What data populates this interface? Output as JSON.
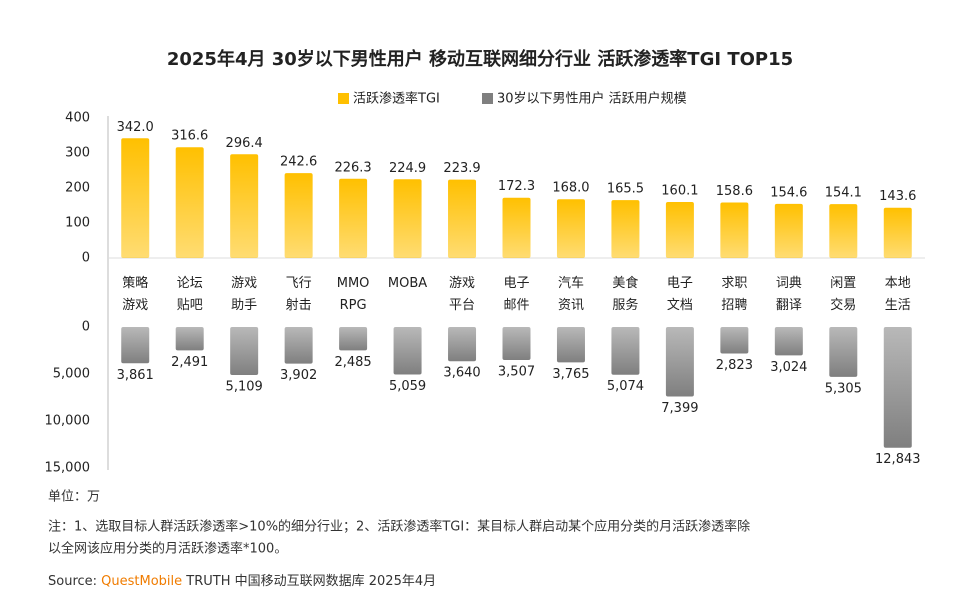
{
  "chart_data": {
    "type": "bar",
    "title": "2025年4月 30岁以下男性用户 移动互联网细分行业 活跃渗透率TGI TOP15",
    "categories": [
      "策略\n游戏",
      "论坛\n贴吧",
      "游戏\n助手",
      "飞行\n射击",
      "MMO\nRPG",
      "MOBA",
      "游戏\n平台",
      "电子\n邮件",
      "汽车\n资讯",
      "美食\n服务",
      "电子\n文档",
      "求职\n招聘",
      "词典\n翻译",
      "闲置\n交易",
      "本地\n生活"
    ],
    "series": [
      {
        "name": "活跃渗透率TGI",
        "color": "#ffc000",
        "values": [
          342.0,
          316.6,
          296.4,
          242.6,
          226.3,
          224.9,
          223.9,
          172.3,
          168.0,
          165.5,
          160.1,
          158.6,
          154.6,
          154.1,
          143.6
        ],
        "value_labels": [
          "342.0",
          "316.6",
          "296.4",
          "242.6",
          "226.3",
          "224.9",
          "223.9",
          "172.3",
          "168.0",
          "165.5",
          "160.1",
          "158.6",
          "154.6",
          "154.1",
          "143.6"
        ]
      },
      {
        "name": "30岁以下男性用户 活跃用户规模",
        "color": "#7f7f7f",
        "axis": "y2",
        "values": [
          3861,
          2491,
          5109,
          3902,
          2485,
          5059,
          3640,
          3507,
          3765,
          5074,
          7399,
          2823,
          3024,
          5305,
          12843
        ],
        "value_labels": [
          "3,861",
          "2,491",
          "5,109",
          "3,902",
          "2,485",
          "5,059",
          "3,640",
          "3,507",
          "3,765",
          "5,074",
          "7,399",
          "2,823",
          "3,024",
          "5,305",
          "12,843"
        ]
      }
    ],
    "ylim": [
      0,
      400
    ],
    "yticks": [
      0,
      100,
      200,
      300,
      400
    ],
    "y2lim": [
      0,
      15000
    ],
    "y2ticks": [
      0,
      {
        "value": 5000,
        "label": "5,000"
      },
      {
        "value": 10000,
        "label": "10,000"
      },
      {
        "value": 15000,
        "label": "15,000"
      }
    ],
    "unit": "单位：万",
    "note": [
      "注：1、选取目标人群活跃渗透率>10%的细分行业；2、活跃渗透率TGI：某目标人群启动某个应用分类的月活跃渗透率除",
      "以全网该应用分类的月活跃渗透率*100。"
    ],
    "source": {
      "prefix": "Source:",
      "brand": "QuestMobile",
      "text": "TRUTH 中国移动互联网数据库 2025年4月"
    }
  }
}
